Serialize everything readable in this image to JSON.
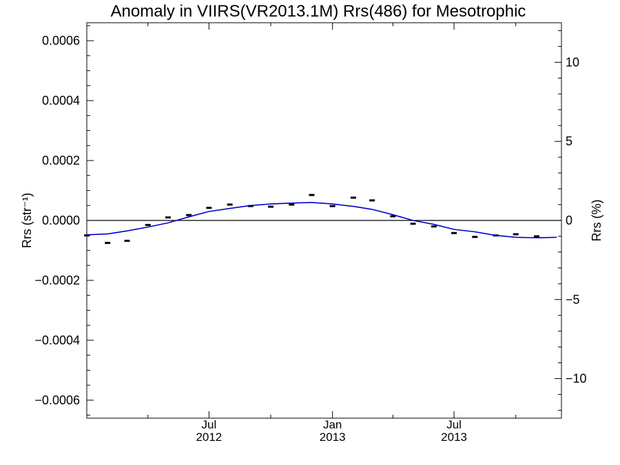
{
  "chart_data": {
    "type": "line",
    "title": "Anomaly in VIIRS(VR2013.1M) Rrs(486) for Mesotrophic",
    "ylabel_left": "Rrs (str⁻¹)",
    "ylabel_right": "Rrs (%)",
    "xlim": [
      "2012-01-01",
      "2013-12-08"
    ],
    "ylim": [
      -0.00066,
      0.00066
    ],
    "ylim_right": [
      -12.5,
      12.5
    ],
    "left_ticks": [
      "0.0006",
      "0.0004",
      "0.0002",
      "0.0000",
      "−0.0002",
      "−0.0004",
      "−0.0006"
    ],
    "left_tick_values": [
      0.0006,
      0.0004,
      0.0002,
      0.0,
      -0.0002,
      -0.0004,
      -0.0006
    ],
    "right_ticks": [
      "10",
      "5",
      "0",
      "−5",
      "−10"
    ],
    "right_tick_values": [
      10,
      5,
      0,
      -5,
      -10
    ],
    "x_ticks": [
      {
        "month": "Jul",
        "year": "2012",
        "date": "2012-07-01"
      },
      {
        "month": "Jan",
        "year": "2013",
        "date": "2013-01-01"
      },
      {
        "month": "Jul",
        "year": "2013",
        "date": "2013-07-01"
      }
    ],
    "x_minor_ticks": [
      "2012-04-01",
      "2012-10-01",
      "2013-04-01",
      "2013-10-01"
    ],
    "zero_line": true,
    "series": [
      {
        "kind": "monthly_anomaly_markers",
        "color": "#000000",
        "points": [
          {
            "date": "2012-01-01",
            "value": -5e-05
          },
          {
            "date": "2012-02-01",
            "value": -7.5e-05
          },
          {
            "date": "2012-03-01",
            "value": -6.8e-05
          },
          {
            "date": "2012-04-01",
            "value": -1.5e-05
          },
          {
            "date": "2012-05-01",
            "value": 1e-05
          },
          {
            "date": "2012-06-01",
            "value": 1.8e-05
          },
          {
            "date": "2012-07-01",
            "value": 4.2e-05
          },
          {
            "date": "2012-08-01",
            "value": 5.3e-05
          },
          {
            "date": "2012-09-01",
            "value": 4.8e-05
          },
          {
            "date": "2012-10-01",
            "value": 4.6e-05
          },
          {
            "date": "2012-11-01",
            "value": 5.3e-05
          },
          {
            "date": "2012-12-01",
            "value": 8.5e-05
          },
          {
            "date": "2013-01-01",
            "value": 4.8e-05
          },
          {
            "date": "2013-02-01",
            "value": 7.6e-05
          },
          {
            "date": "2013-03-01",
            "value": 6.7e-05
          },
          {
            "date": "2013-04-01",
            "value": 1.4e-05
          },
          {
            "date": "2013-05-01",
            "value": -1.1e-05
          },
          {
            "date": "2013-06-01",
            "value": -2e-05
          },
          {
            "date": "2013-07-01",
            "value": -4.2e-05
          },
          {
            "date": "2013-08-01",
            "value": -5.5e-05
          },
          {
            "date": "2013-09-01",
            "value": -5e-05
          },
          {
            "date": "2013-10-01",
            "value": -4.6e-05
          },
          {
            "date": "2013-11-01",
            "value": -5.3e-05
          }
        ]
      },
      {
        "kind": "smoothed_line",
        "color": "#0000cc",
        "points": [
          {
            "date": "2012-01-01",
            "value": -4.8e-05
          },
          {
            "date": "2012-02-01",
            "value": -4.5e-05
          },
          {
            "date": "2012-03-01",
            "value": -3.5e-05
          },
          {
            "date": "2012-04-01",
            "value": -2.2e-05
          },
          {
            "date": "2012-05-01",
            "value": -8e-06
          },
          {
            "date": "2012-06-01",
            "value": 1.2e-05
          },
          {
            "date": "2012-07-01",
            "value": 3e-05
          },
          {
            "date": "2012-08-01",
            "value": 4e-05
          },
          {
            "date": "2012-09-01",
            "value": 5e-05
          },
          {
            "date": "2012-10-01",
            "value": 5.5e-05
          },
          {
            "date": "2012-11-01",
            "value": 5.8e-05
          },
          {
            "date": "2012-12-01",
            "value": 6e-05
          },
          {
            "date": "2013-01-01",
            "value": 5.5e-05
          },
          {
            "date": "2013-02-01",
            "value": 4.7e-05
          },
          {
            "date": "2013-03-01",
            "value": 3.7e-05
          },
          {
            "date": "2013-04-01",
            "value": 1.9e-05
          },
          {
            "date": "2013-05-01",
            "value": 0.0
          },
          {
            "date": "2013-06-01",
            "value": -1.3e-05
          },
          {
            "date": "2013-07-01",
            "value": -3e-05
          },
          {
            "date": "2013-08-01",
            "value": -3.8e-05
          },
          {
            "date": "2013-09-01",
            "value": -5e-05
          },
          {
            "date": "2013-10-01",
            "value": -5.6e-05
          },
          {
            "date": "2013-11-01",
            "value": -5.8e-05
          },
          {
            "date": "2013-12-01",
            "value": -5.6e-05
          }
        ]
      }
    ]
  }
}
